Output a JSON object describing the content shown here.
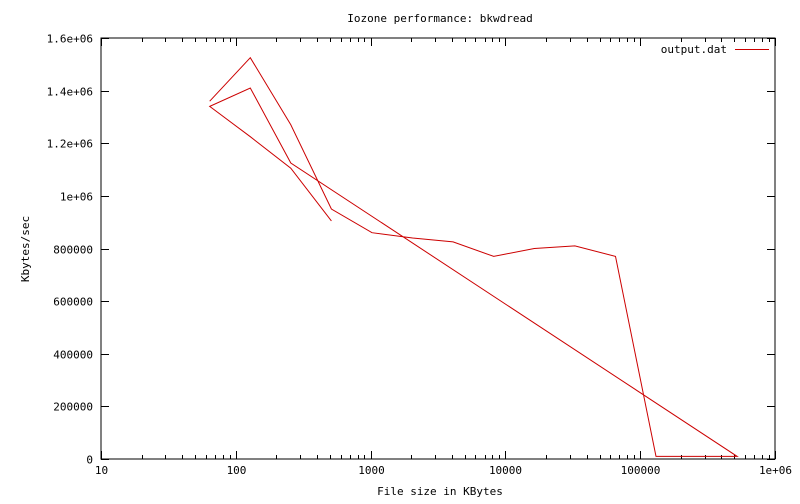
{
  "chart_data": {
    "type": "line",
    "title": "Iozone performance: bkwdread",
    "xlabel": "File size in KBytes",
    "ylabel": "Kbytes/sec",
    "x_scale": "log",
    "xlim": [
      10,
      1000000
    ],
    "ylim": [
      0,
      1600000
    ],
    "x_ticks": [
      {
        "value": 10,
        "label": "10"
      },
      {
        "value": 100,
        "label": "100"
      },
      {
        "value": 1000,
        "label": "1000"
      },
      {
        "value": 10000,
        "label": "10000"
      },
      {
        "value": 100000,
        "label": "100000"
      },
      {
        "value": 1000000,
        "label": "1e+06"
      }
    ],
    "y_ticks": [
      {
        "value": 0,
        "label": "0"
      },
      {
        "value": 200000,
        "label": "200000"
      },
      {
        "value": 400000,
        "label": "400000"
      },
      {
        "value": 600000,
        "label": "600000"
      },
      {
        "value": 800000,
        "label": "800000"
      },
      {
        "value": 1000000,
        "label": "1e+06"
      },
      {
        "value": 1200000,
        "label": "1.2e+06"
      },
      {
        "value": 1400000,
        "label": "1.4e+06"
      },
      {
        "value": 1600000,
        "label": "1.6e+06"
      }
    ],
    "grid": false,
    "legend_position": "top-right",
    "series": [
      {
        "name": "output.dat",
        "color": "#cc0000",
        "points": [
          [
            64,
            1360000
          ],
          [
            128,
            1525000
          ],
          [
            256,
            1270000
          ],
          [
            512,
            950000
          ],
          [
            1024,
            860000
          ],
          [
            2048,
            840000
          ],
          [
            4096,
            825000
          ],
          [
            8192,
            770000
          ],
          [
            16384,
            800000
          ],
          [
            32768,
            810000
          ],
          [
            65536,
            770000
          ],
          [
            131072,
            10000
          ],
          [
            262144,
            10000
          ],
          [
            524288,
            10000
          ],
          [
            256,
            1125000
          ],
          [
            128,
            1410000
          ],
          [
            64,
            1340000
          ],
          [
            128,
            1225000
          ],
          [
            256,
            1105000
          ],
          [
            512,
            905000
          ]
        ]
      }
    ]
  }
}
